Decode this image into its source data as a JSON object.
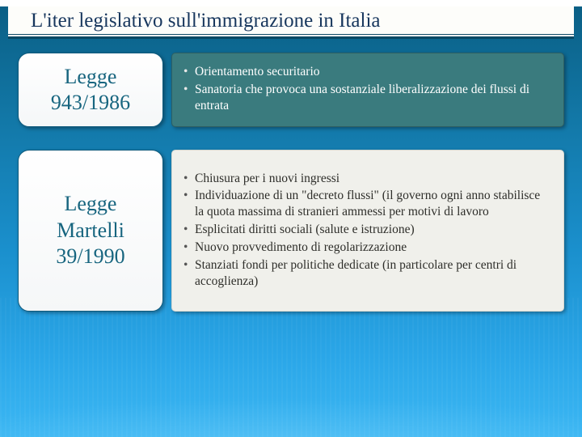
{
  "colors": {
    "bg_gradient": [
      "#0a5f85",
      "#1277a6",
      "#1a8fcc",
      "#2aa6e8",
      "#3cb8f4"
    ],
    "title_color": "#17365d",
    "title_bg": "#fdfdfa",
    "title_border": "#0f4a66",
    "left_card_bg": [
      "#ffffff",
      "#f5f7f8"
    ],
    "left_card_border": "#0f5a7c",
    "left_card_text": "#17657f",
    "right_card_1_bg": "#3a7b7e",
    "right_card_1_text": "#ffffff",
    "right_card_2_bg": "#f0f0eb",
    "right_card_2_text": "#2e2e2a"
  },
  "typography": {
    "title_fontsize": 25,
    "law_name_fontsize": 26,
    "bullet_fontsize": 15.5,
    "font_family": "Georgia"
  },
  "layout": {
    "slide_width": 720,
    "slide_height": 540,
    "left_card_width": 180,
    "left_card_radius": 14,
    "right_card_radius": 5,
    "row_gap": 10
  },
  "title": "L'iter legislativo sull'immigrazione in Italia",
  "rows": [
    {
      "law_lines": [
        "Legge",
        "943/1986"
      ],
      "bullets": [
        "Orientamento securitario",
        "Sanatoria che provoca una sostanziale liberalizzazione dei flussi di entrata"
      ]
    },
    {
      "law_lines": [
        "Legge",
        "Martelli",
        "39/1990"
      ],
      "bullets": [
        "Chiusura per i nuovi ingressi",
        "Individuazione di un \"decreto flussi\" (il governo ogni anno stabilisce la quota massima di stranieri ammessi per motivi di lavoro",
        "Esplicitati diritti sociali (salute e istruzione)",
        "Nuovo provvedimento di regolarizzazione",
        "Stanziati fondi per politiche dedicate (in particolare per centri di accoglienza)"
      ]
    }
  ]
}
